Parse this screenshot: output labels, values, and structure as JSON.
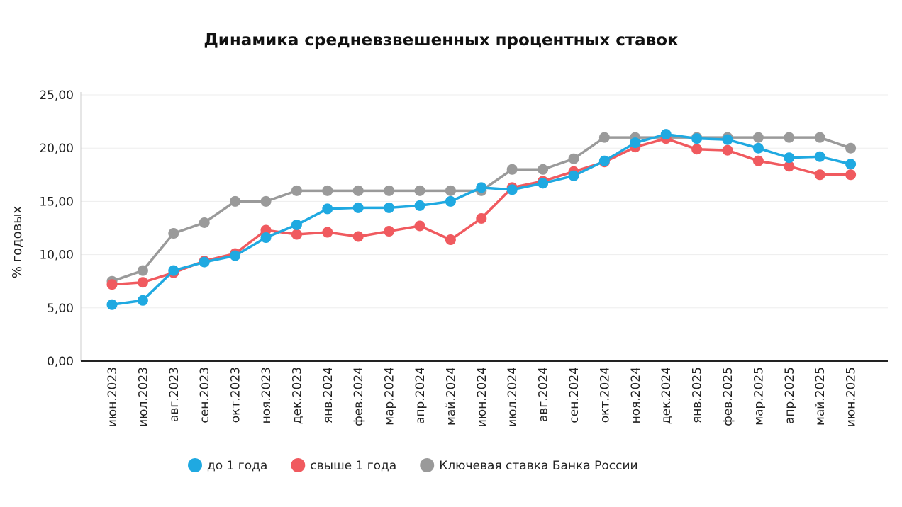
{
  "chart_data": {
    "type": "line",
    "title": "Динамика средневзвешенных процентных ставок",
    "ylabel": "% годовых",
    "xlabel": "",
    "ylim": [
      0,
      25
    ],
    "yticks": [
      "0,00",
      "5,00",
      "10,00",
      "15,00",
      "20,00",
      "25,00"
    ],
    "grid": true,
    "legend_position": "bottom",
    "categories": [
      "июн.2023",
      "июл.2023",
      "авг.2023",
      "сен.2023",
      "окт.2023",
      "ноя.2023",
      "дек.2023",
      "янв.2024",
      "фев.2024",
      "мар.2024",
      "апр.2024",
      "май.2024",
      "июн.2024",
      "июл.2024",
      "авг.2024",
      "сен.2024",
      "окт.2024",
      "ноя.2024",
      "дек.2024",
      "янв.2025",
      "фев.2025",
      "мар.2025",
      "апр.2025",
      "май.2025",
      "июн.2025"
    ],
    "series": [
      {
        "name": "Ключевая ставка Банка России",
        "color": "#9a9a9a",
        "values": [
          7.5,
          8.5,
          12,
          13,
          15,
          15,
          16,
          16,
          16,
          16,
          16,
          16,
          16,
          18,
          18,
          19,
          21,
          21,
          21,
          21,
          21,
          21,
          21,
          21,
          20
        ]
      },
      {
        "name": "свыше 1 года",
        "color": "#f05a5f",
        "values": [
          7.2,
          7.4,
          8.3,
          9.4,
          10.1,
          12.3,
          11.9,
          12.1,
          11.7,
          12.2,
          12.7,
          11.4,
          13.4,
          16.3,
          16.9,
          17.8,
          18.7,
          20.1,
          20.9,
          19.9,
          19.8,
          18.8,
          18.3,
          17.5,
          17.5
        ]
      },
      {
        "name": "до 1 года",
        "color": "#1fa9e1",
        "values": [
          5.3,
          5.7,
          8.5,
          9.3,
          9.9,
          11.6,
          12.8,
          14.3,
          14.4,
          14.4,
          14.6,
          15.0,
          16.3,
          16.1,
          16.7,
          17.4,
          18.8,
          20.5,
          21.3,
          20.9,
          20.8,
          20.0,
          19.1,
          19.2,
          18.5
        ]
      }
    ],
    "legend": [
      {
        "label": "до 1 года",
        "color": "#1fa9e1"
      },
      {
        "label": "свыше 1 года",
        "color": "#f05a5f"
      },
      {
        "label": "Ключевая ставка Банка России",
        "color": "#9a9a9a"
      }
    ]
  }
}
